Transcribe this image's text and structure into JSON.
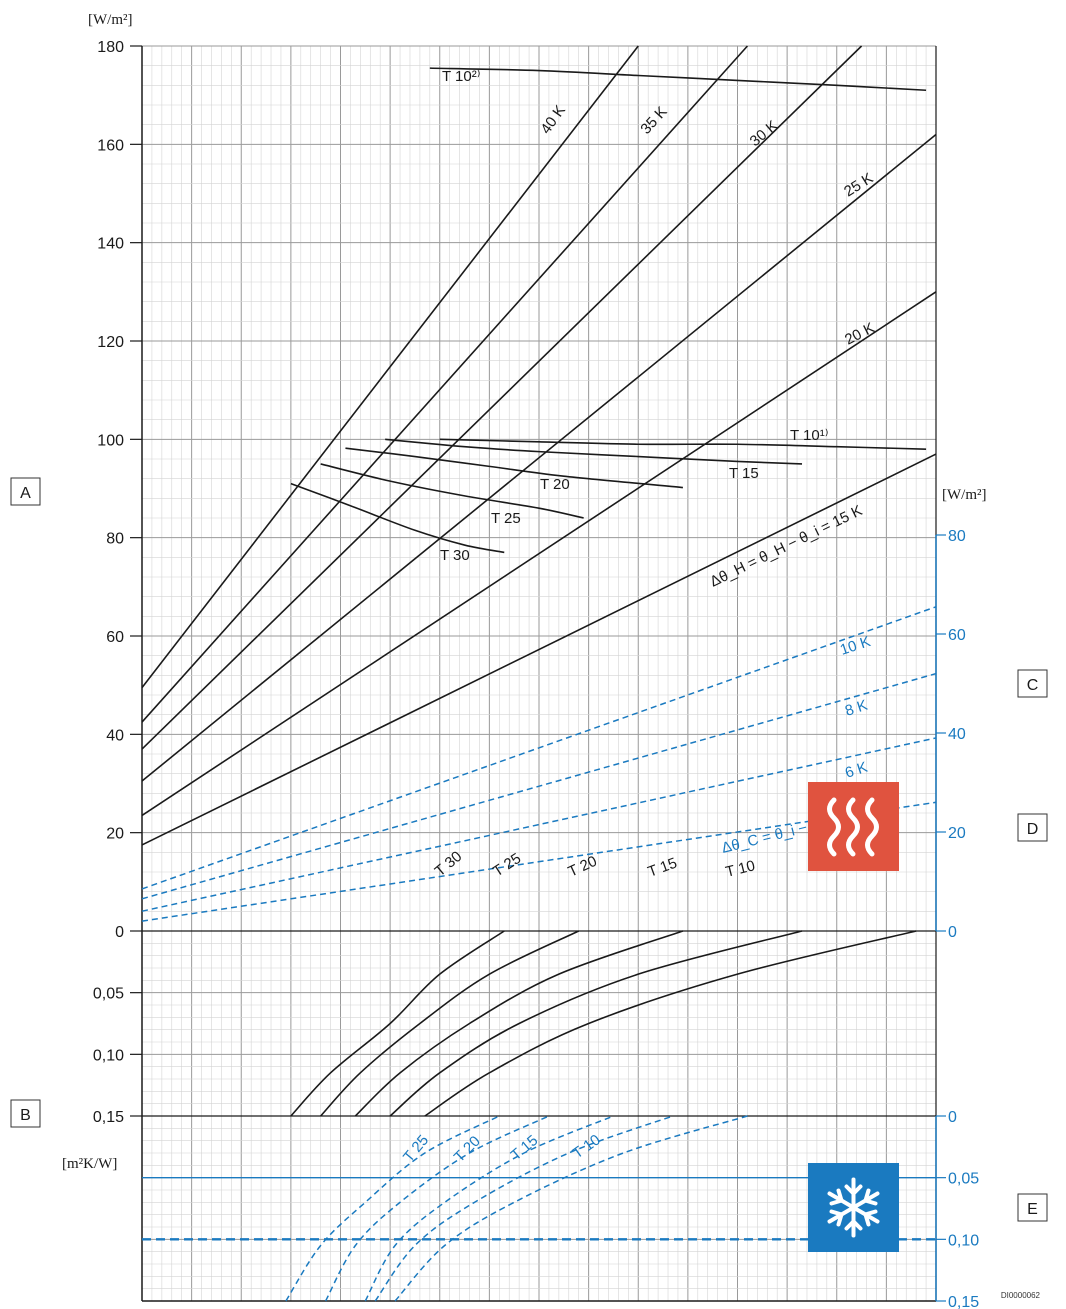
{
  "colors": {
    "heating": "#1a1a1a",
    "cooling": "#1a7ac0",
    "heating_icon_bg": "#e0533f",
    "cooling_icon_bg": "#1a7ac0",
    "grid": "#c4c4c4"
  },
  "icons": {
    "heating": "heat-waves-icon",
    "cooling": "snowflake-icon"
  },
  "labels": {
    "A": "A",
    "B": "B",
    "C": "C",
    "D": "D",
    "E": "E",
    "left_unit": "[W/m²]",
    "right_unit": "[W/m²]",
    "resistance_unit": "[m²K/W]",
    "ref_code": "DI0000062"
  },
  "chart_data": [
    {
      "type": "line",
      "panel": "heating/cooling output",
      "left_axis": {
        "unit": "[W/m²]",
        "range": [
          0,
          180
        ],
        "ticks": [
          "0",
          "20",
          "40",
          "60",
          "80",
          "100",
          "120",
          "140",
          "160",
          "180"
        ]
      },
      "right_axis": {
        "unit": "[W/m²]",
        "range": [
          0,
          80
        ],
        "ticks": [
          "0",
          "20",
          "40",
          "60",
          "80"
        ]
      },
      "x_range": [
        0,
        16
      ],
      "grid": true,
      "heating_lines": [
        {
          "label": "Δθ_H = θ_H − θ_i = 15 K",
          "x": [
            0,
            16
          ],
          "y": [
            17.5,
            97
          ]
        },
        {
          "label": "20 K",
          "x": [
            0,
            16
          ],
          "y": [
            23.5,
            130
          ]
        },
        {
          "label": "25 K",
          "x": [
            0,
            16
          ],
          "y": [
            30.5,
            162
          ]
        },
        {
          "label": "30 K",
          "x": [
            0,
            14.5
          ],
          "y": [
            37,
            180
          ]
        },
        {
          "label": "35 K",
          "x": [
            0,
            12.2
          ],
          "y": [
            42.5,
            180
          ]
        },
        {
          "label": "40 K",
          "x": [
            0,
            10
          ],
          "y": [
            49.5,
            180
          ]
        }
      ],
      "heating_limit_curves": [
        {
          "label": "T 10²⁾",
          "x": [
            5.8,
            8,
            10,
            12,
            14,
            15.8
          ],
          "y": [
            175.5,
            175,
            174,
            173,
            172,
            171
          ]
        },
        {
          "label": "T 10¹⁾",
          "x": [
            6,
            8,
            10,
            12,
            14,
            15.8
          ],
          "y": [
            100,
            99.5,
            99,
            99,
            98.5,
            98
          ]
        },
        {
          "label": "T 15",
          "x": [
            4.9,
            6.5,
            8,
            10,
            12,
            13.3
          ],
          "y": [
            100,
            98.5,
            97.5,
            96.5,
            95.5,
            95
          ]
        },
        {
          "label": "T 20",
          "x": [
            4.1,
            5.5,
            7,
            8.5,
            10.9
          ],
          "y": [
            98.2,
            96.5,
            94.5,
            92.5,
            90.2
          ]
        },
        {
          "label": "T 25",
          "x": [
            3.6,
            5,
            6.5,
            8,
            8.9
          ],
          "y": [
            95,
            91.5,
            88.5,
            86,
            84
          ]
        },
        {
          "label": "T 30",
          "x": [
            3,
            4.2,
            5.5,
            6.5,
            7.3
          ],
          "y": [
            91,
            86.5,
            81.5,
            78.5,
            77
          ]
        }
      ],
      "cooling_lines": [
        {
          "label": "Δθ_C = θ_i − θ_C = 4 K",
          "x": [
            0,
            16
          ],
          "y": [
            2,
            26
          ]
        },
        {
          "label": "6 K",
          "x": [
            0,
            16
          ],
          "y": [
            4,
            39
          ]
        },
        {
          "label": "8 K",
          "x": [
            0,
            16
          ],
          "y": [
            6.5,
            52
          ]
        },
        {
          "label": "10 K",
          "x": [
            0,
            16
          ],
          "y": [
            8.5,
            65.5
          ]
        }
      ]
    },
    {
      "type": "line",
      "panel": "heating thermal resistance",
      "left_axis": {
        "unit": "[m²K/W]",
        "range": [
          0,
          0.15
        ],
        "ticks": [
          "0",
          "0,05",
          "0,10",
          "0,15"
        ]
      },
      "grid": true,
      "curves": [
        {
          "label": "T 30",
          "x": [
            3,
            3.8,
            5,
            6,
            7.3
          ],
          "y": [
            0.15,
            0.115,
            0.075,
            0.035,
            0
          ]
        },
        {
          "label": "T 25",
          "x": [
            3.6,
            4.4,
            5.6,
            7,
            8.8
          ],
          "y": [
            0.15,
            0.115,
            0.075,
            0.035,
            0
          ]
        },
        {
          "label": "T 20",
          "x": [
            4.3,
            5.2,
            6.6,
            8.4,
            10.9
          ],
          "y": [
            0.15,
            0.115,
            0.075,
            0.035,
            0
          ]
        },
        {
          "label": "T 15",
          "x": [
            5,
            6,
            7.6,
            10,
            13.3
          ],
          "y": [
            0.15,
            0.115,
            0.075,
            0.035,
            0
          ]
        },
        {
          "label": "T 10",
          "x": [
            5.7,
            7,
            9,
            12,
            15.6
          ],
          "y": [
            0.15,
            0.115,
            0.075,
            0.035,
            0
          ]
        }
      ]
    },
    {
      "type": "line",
      "panel": "cooling thermal resistance",
      "right_axis": {
        "range": [
          0,
          0.15
        ],
        "ticks": [
          "0",
          "0,05",
          "0,10",
          "0,15"
        ]
      },
      "grid": true,
      "curves": [
        {
          "label": "",
          "x": [
            2.9,
            3.6,
            4.5,
            5.7,
            7.2
          ],
          "y": [
            0.15,
            0.105,
            0.07,
            0.03,
            0
          ]
        },
        {
          "label": "T 25",
          "x": [
            3.7,
            4.3,
            5.2,
            6.6,
            8.2
          ],
          "y": [
            0.15,
            0.105,
            0.07,
            0.03,
            0
          ]
        },
        {
          "label": "T 20",
          "x": [
            4.5,
            5.1,
            6.1,
            7.7,
            9.5
          ],
          "y": [
            0.15,
            0.105,
            0.07,
            0.03,
            0
          ]
        },
        {
          "label": "T 15",
          "x": [
            4.7,
            5.5,
            6.7,
            8.6,
            10.7
          ],
          "y": [
            0.15,
            0.105,
            0.07,
            0.03,
            0
          ]
        },
        {
          "label": "T 10",
          "x": [
            5.1,
            6.1,
            7.5,
            9.7,
            12.2
          ],
          "y": [
            0.15,
            0.105,
            0.07,
            0.03,
            0
          ]
        }
      ],
      "reference_lines": [
        {
          "style": "solid",
          "y": 0.05
        },
        {
          "style": "dashed",
          "y": 0.1
        }
      ]
    }
  ]
}
